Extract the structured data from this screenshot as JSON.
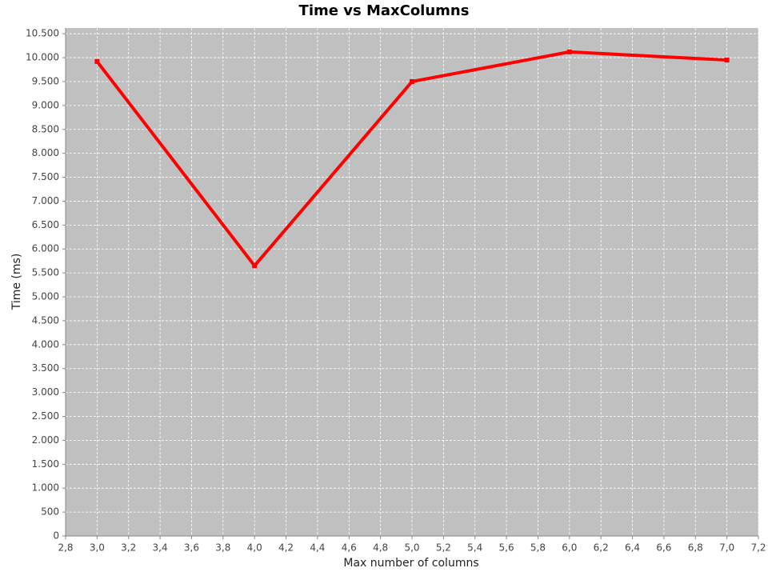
{
  "chart_data": {
    "type": "line",
    "title": "Time vs MaxColumns",
    "x_label": "Max number of columns",
    "y_label": "Time (ms)",
    "x": [
      3,
      4,
      5,
      6,
      7
    ],
    "series": [
      {
        "color": "#ff0000",
        "values": [
          9920,
          5650,
          9500,
          10120,
          9950
        ]
      }
    ],
    "xlim": [
      2.8,
      7.2
    ],
    "ylim": [
      0,
      10620
    ],
    "xticks": [
      {
        "value": 2.8,
        "label": "2,8"
      },
      {
        "value": 3.0,
        "label": "3,0"
      },
      {
        "value": 3.2,
        "label": "3,2"
      },
      {
        "value": 3.4,
        "label": "3,4"
      },
      {
        "value": 3.6,
        "label": "3,6"
      },
      {
        "value": 3.8,
        "label": "3,8"
      },
      {
        "value": 4.0,
        "label": "4,0"
      },
      {
        "value": 4.2,
        "label": "4,2"
      },
      {
        "value": 4.4,
        "label": "4,4"
      },
      {
        "value": 4.6,
        "label": "4,6"
      },
      {
        "value": 4.8,
        "label": "4,8"
      },
      {
        "value": 5.0,
        "label": "5,0"
      },
      {
        "value": 5.2,
        "label": "5,2"
      },
      {
        "value": 5.4,
        "label": "5,4"
      },
      {
        "value": 5.6,
        "label": "5,6"
      },
      {
        "value": 5.8,
        "label": "5,8"
      },
      {
        "value": 6.0,
        "label": "6,0"
      },
      {
        "value": 6.2,
        "label": "6,2"
      },
      {
        "value": 6.4,
        "label": "6,4"
      },
      {
        "value": 6.6,
        "label": "6,6"
      },
      {
        "value": 6.8,
        "label": "6,8"
      },
      {
        "value": 7.0,
        "label": "7,0"
      },
      {
        "value": 7.2,
        "label": "7,2"
      }
    ],
    "yticks": [
      0,
      500,
      {
        "value": 1000,
        "label": "1.000"
      },
      {
        "value": 1500,
        "label": "1.500"
      },
      {
        "value": 2000,
        "label": "2.000"
      },
      {
        "value": 2500,
        "label": "2.500"
      },
      {
        "value": 3000,
        "label": "3.000"
      },
      {
        "value": 3500,
        "label": "3.500"
      },
      {
        "value": 4000,
        "label": "4.000"
      },
      {
        "value": 4500,
        "label": "4.500"
      },
      {
        "value": 5000,
        "label": "5.000"
      },
      {
        "value": 5500,
        "label": "5.500"
      },
      {
        "value": 6000,
        "label": "6.000"
      },
      {
        "value": 6500,
        "label": "6.500"
      },
      {
        "value": 7000,
        "label": "7.000"
      },
      {
        "value": 7500,
        "label": "7.500"
      },
      {
        "value": 8000,
        "label": "8.000"
      },
      {
        "value": 8500,
        "label": "8.500"
      },
      {
        "value": 9000,
        "label": "9.000"
      },
      {
        "value": 9500,
        "label": "9.500"
      },
      {
        "value": 10000,
        "label": "10.000"
      },
      {
        "value": 10500,
        "label": "10.500"
      }
    ],
    "grid": true
  }
}
